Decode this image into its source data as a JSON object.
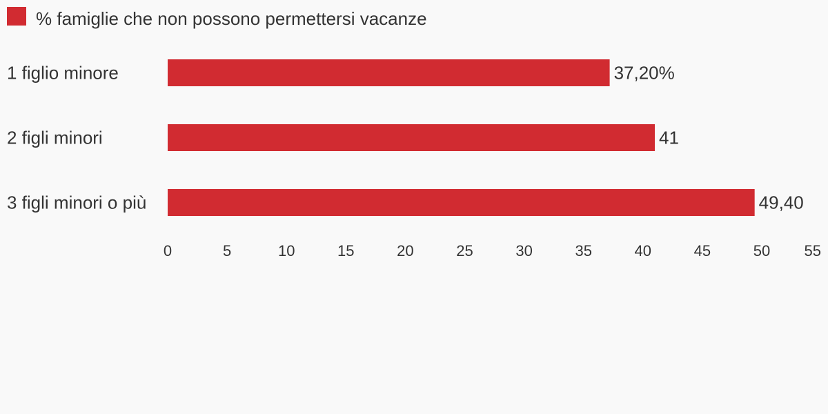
{
  "chart_data": {
    "type": "bar",
    "orientation": "horizontal",
    "categories": [
      "1 figlio minore",
      "2 figli minori",
      "3 figli minori o più"
    ],
    "series": [
      {
        "name": "% famiglie che non possono permettersi vacanze",
        "values": [
          37.2,
          41,
          49.4
        ],
        "value_labels": [
          "37,20%",
          "41",
          "49,40"
        ],
        "color": "#d12b31"
      }
    ],
    "xlim": [
      0,
      55
    ],
    "x_ticks": [
      "0",
      "5",
      "10",
      "15",
      "20",
      "25",
      "30",
      "35",
      "40",
      "45",
      "50",
      "55"
    ],
    "legend_position": "top-left",
    "grid": false
  }
}
